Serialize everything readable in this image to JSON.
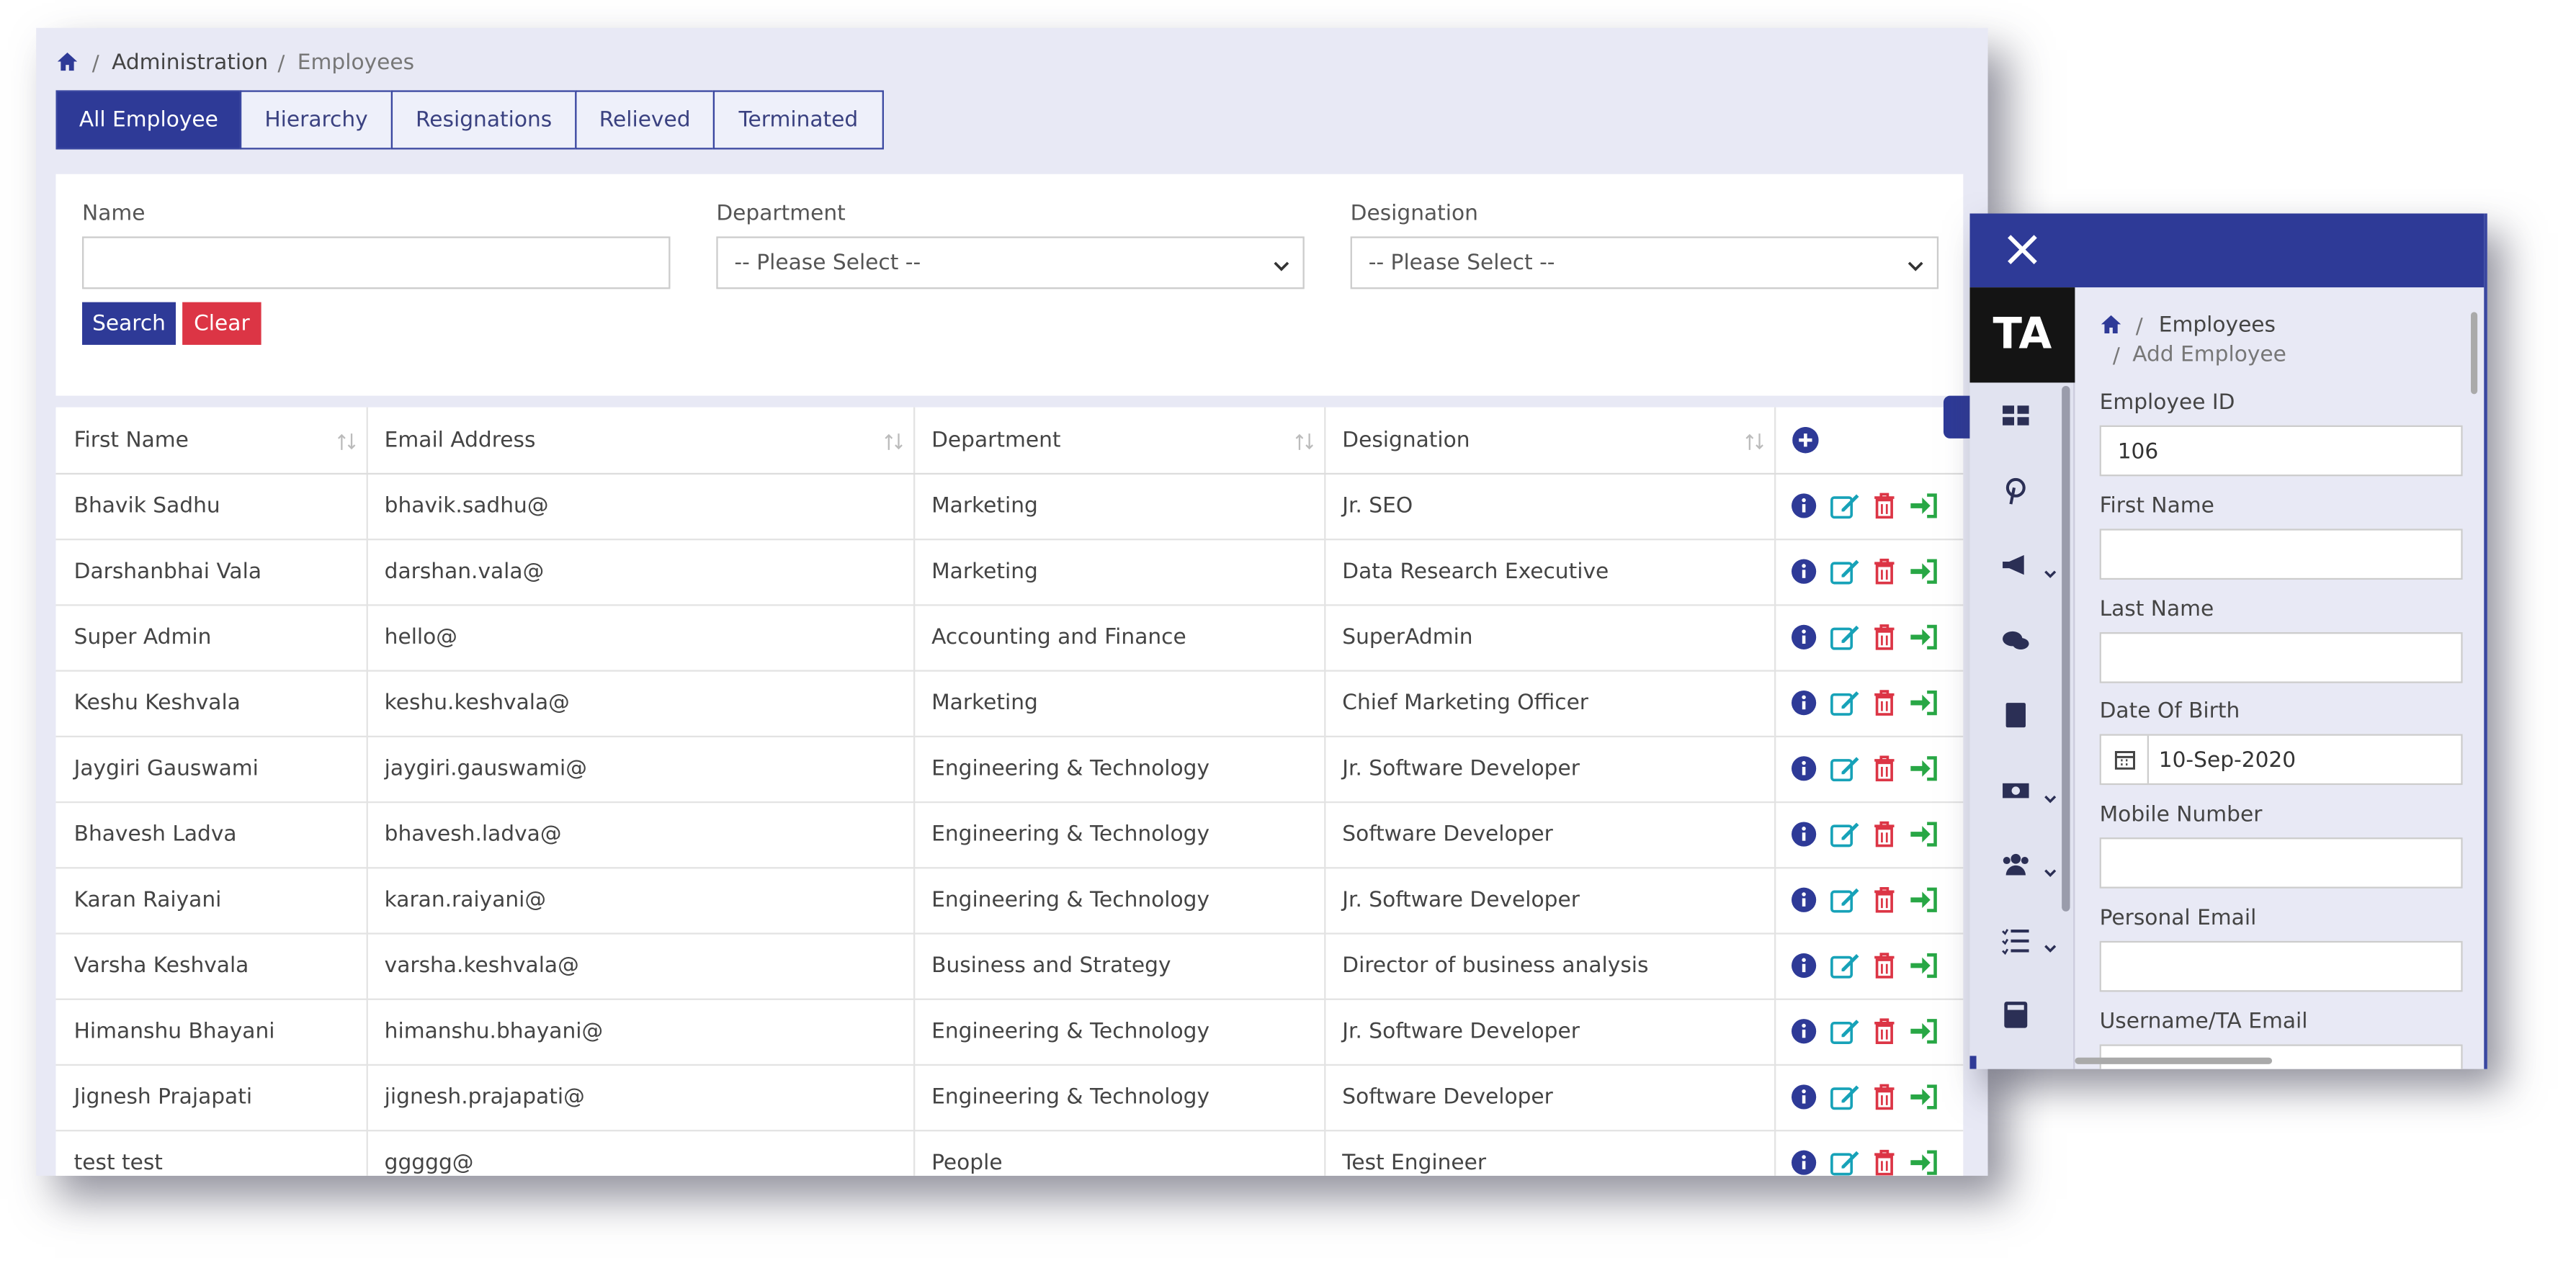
{
  "breadcrumb": {
    "items": [
      "Administration",
      "Employees"
    ]
  },
  "tabs": [
    "All Employee",
    "Hierarchy",
    "Resignations",
    "Relieved",
    "Terminated"
  ],
  "filters": [
    {
      "label": "Name"
    },
    {
      "label": "Department",
      "value": "-- Please Select --"
    },
    {
      "label": "Designation",
      "value": "-- Please Select --"
    }
  ],
  "buttons": [
    "Search",
    "Clear"
  ],
  "table": {
    "columns": [
      "First Name",
      "Email Address",
      "Department",
      "Designation"
    ],
    "rows": [
      [
        "Bhavik Sadhu",
        "bhavik.sadhu@",
        "Marketing",
        "Jr. SEO"
      ],
      [
        "Darshanbhai Vala",
        "darshan.vala@",
        "Marketing",
        "Data Research Executive"
      ],
      [
        "Super Admin",
        "hello@",
        "Accounting and Finance",
        "SuperAdmin"
      ],
      [
        "Keshu Keshvala",
        "keshu.keshvala@",
        "Marketing",
        "Chief Marketing Officer"
      ],
      [
        "Jaygiri Gauswami",
        "jaygiri.gauswami@",
        "Engineering & Technology",
        "Jr. Software Developer"
      ],
      [
        "Bhavesh Ladva",
        "bhavesh.ladva@",
        "Engineering & Technology",
        "Software Developer"
      ],
      [
        "Karan Raiyani",
        "karan.raiyani@",
        "Engineering & Technology",
        "Jr. Software Developer"
      ],
      [
        "Varsha Keshvala",
        "varsha.keshvala@",
        "Business and Strategy",
        "Director of business analysis"
      ],
      [
        "Himanshu Bhayani",
        "himanshu.bhayani@",
        "Engineering & Technology",
        "Jr. Software Developer"
      ],
      [
        "Jignesh Prajapati",
        "jignesh.prajapati@",
        "Engineering & Technology",
        "Software Developer"
      ],
      [
        "test test",
        "ggggg@",
        "People",
        "Test Engineer"
      ]
    ]
  },
  "panel": {
    "logo": "TA",
    "breadcrumb": [
      "Employees",
      "Add Employee"
    ],
    "fields": [
      {
        "label": "Employee ID",
        "value": "106"
      },
      {
        "label": "First Name"
      },
      {
        "label": "Last Name"
      },
      {
        "label": "Date Of Birth",
        "value": "10-Sep-2020"
      },
      {
        "label": "Mobile Number"
      },
      {
        "label": "Personal Email"
      },
      {
        "label": "Username/TA Email"
      }
    ]
  }
}
